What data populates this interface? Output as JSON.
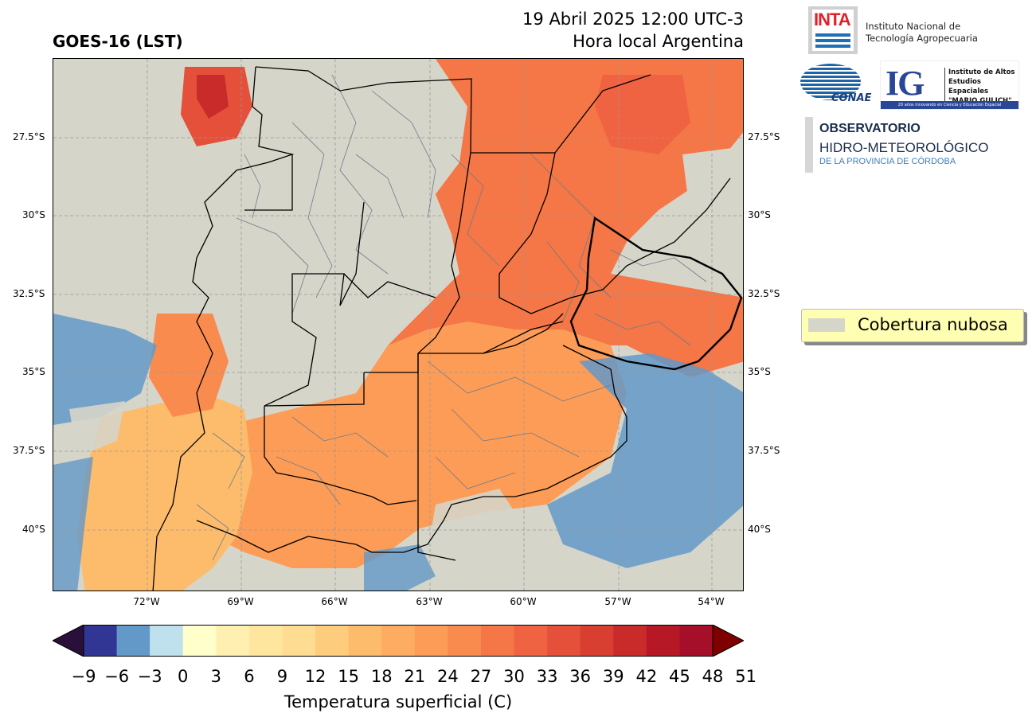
{
  "header": {
    "title": "GOES-16 (LST)",
    "date_line": "19 Abril 2025 12:00 UTC-3",
    "local_line": "Hora local Argentina"
  },
  "logos": {
    "inta_word": "INTA",
    "inta_text_1": "Instituto Nacional de",
    "inta_text_2": "Tecnología Agropecuaria",
    "conae_word": "CONAE",
    "ig_letters": "IG",
    "ig_text_1": "Instituto de Altos",
    "ig_text_2": "Estudios Espaciales",
    "ig_text_3": "\"MARIO GULICH\"",
    "ig_bar": "20 años innovando en Ciencia y Educación Espacial",
    "obs_1": "OBSERVATORIO",
    "obs_2": "HIDRO-METEOROLÓGICO",
    "obs_3": "DE LA PROVINCIA DE CÓRDOBA"
  },
  "map": {
    "lat_labels": [
      "27.5°S",
      "30°S",
      "32.5°S",
      "35°S",
      "37.5°S",
      "40°S"
    ],
    "lon_labels": [
      "72°W",
      "69°W",
      "66°W",
      "63°W",
      "60°W",
      "57°W",
      "54°W"
    ],
    "cloud_color": "#d6d5c9",
    "grid": "dashed"
  },
  "legend": {
    "cloud_label": "Cobertura nubosa"
  },
  "colorbar": {
    "title": "Temperatura superficial (C)",
    "ticks": [
      "−9",
      "−6",
      "−3",
      "0",
      "3",
      "6",
      "9",
      "12",
      "15",
      "18",
      "21",
      "24",
      "27",
      "30",
      "33",
      "36",
      "39",
      "42",
      "45",
      "48",
      "51"
    ],
    "colors": [
      "#313695",
      "#6399c9",
      "#bfe1ee",
      "#ffffcc",
      "#fff0b2",
      "#ffe69f",
      "#fedd92",
      "#fdcc7d",
      "#fdbb6c",
      "#fdac61",
      "#fc9c57",
      "#f98b4f",
      "#f57646",
      "#ef6342",
      "#e5503a",
      "#d93f30",
      "#c92a2a",
      "#b71826",
      "#a50f2a"
    ],
    "under_color": "#2a0f3a",
    "over_color": "#7f0000"
  }
}
